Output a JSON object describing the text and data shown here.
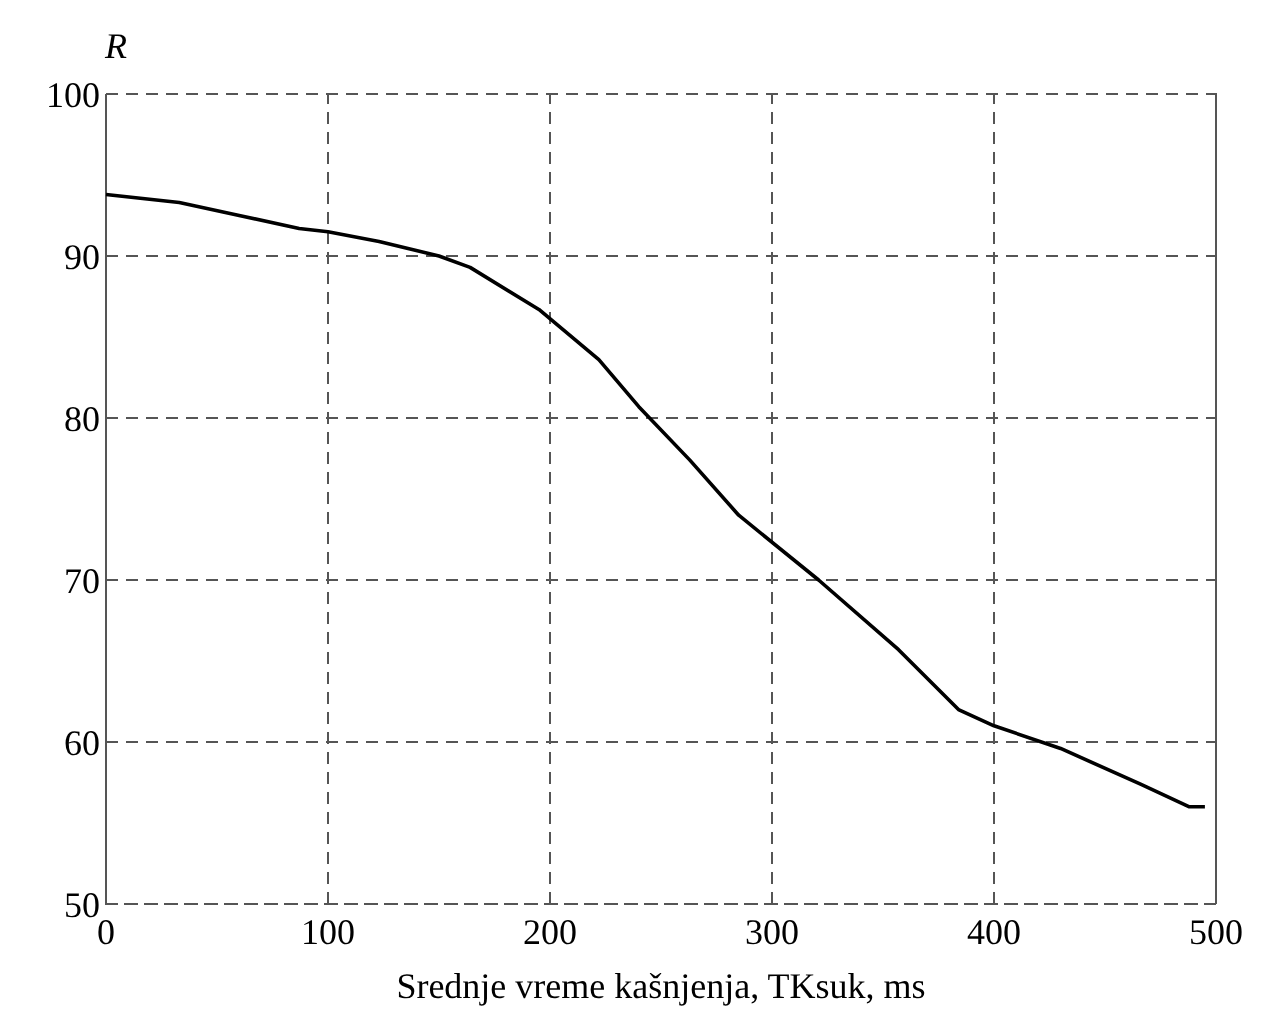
{
  "chart_data": {
    "type": "line",
    "xlabel": "Srednje vreme kašnjenja, TKsuk, ms",
    "ylabel": "R",
    "x": [
      0,
      33,
      60,
      87,
      100,
      123,
      150,
      164,
      195,
      222,
      240,
      263,
      285,
      321,
      357,
      384,
      400,
      430,
      466,
      488,
      495
    ],
    "series": [
      {
        "color": "#000000",
        "values": [
          93.8,
          93.3,
          92.5,
          91.7,
          91.5,
          90.9,
          90,
          89.3,
          86.7,
          83.6,
          80.7,
          77.4,
          74,
          70,
          65.7,
          62,
          61,
          59.6,
          57.4,
          56,
          56
        ]
      }
    ],
    "xlim": [
      0,
      500
    ],
    "ylim": [
      50,
      100
    ],
    "xticks": [
      0,
      100,
      200,
      300,
      400,
      500
    ],
    "yticks": [
      50,
      60,
      70,
      80,
      90,
      100
    ],
    "grid": true,
    "line_style": "solid",
    "marker": "none"
  }
}
